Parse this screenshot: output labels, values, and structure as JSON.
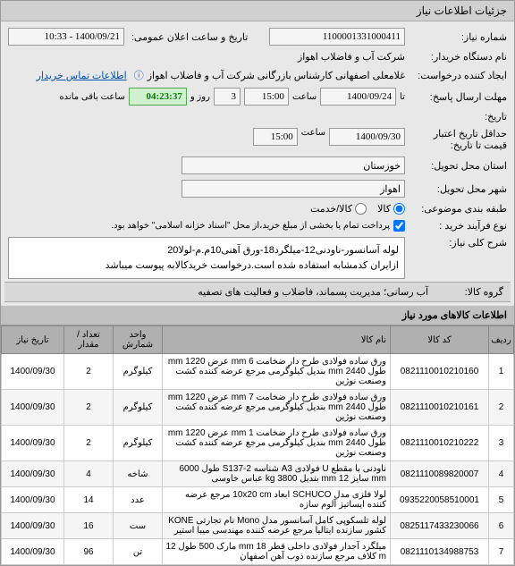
{
  "header": {
    "tab_title": "جزئیات اطلاعات نیاز"
  },
  "fields": {
    "need_no_label": "شماره نیاز:",
    "need_no": "1100001331000411",
    "announce_label": "تاریخ و ساعت اعلان عمومی:",
    "announce_value": "1400/09/21 - 10:33",
    "org_label": "نام دستگاه خریدار:",
    "org_value": "شرکت آب و فاضلاب اهواز",
    "creator_label": "ایجاد کننده درخواست:",
    "creator_value": "غلامعلی اصفهانی کارشناس بازرگانی شرکت آب و فاضلاب اهواز",
    "contact_link": "اطلاعات تماس خریدار",
    "deadline_label": "مهلت ارسال پاسخ:",
    "deadline_word": "تا",
    "deadline_date": "1400/09/24",
    "deadline_hour_label": "ساعت",
    "deadline_hour": "15:00",
    "remain_day": "3",
    "remain_day_label": "روز و",
    "remain_time": "04:23:37",
    "remain_label": "ساعت باقی مانده",
    "history_label": "تاریخ:",
    "validity_label": "حداقل تاریخ اعتبار",
    "validity_sub": "قیمت تا تاریخ:",
    "validity_date": "1400/09/30",
    "validity_hour": "15:00",
    "province_label": "استان محل تحویل:",
    "province": "خوزستان",
    "city_label": "شهر محل تحویل:",
    "city": "اهواز",
    "category_label": "طبقه بندی موضوعی:",
    "cat_item1": "کالا",
    "cat_item2": "کالا/خدمت",
    "process_label": "نوع فرآیند خرید :",
    "process_text": "پرداخت تمام یا بخشی از مبلغ خرید،از محل \"اسناد خزانه اسلامی\" خواهد بود.",
    "desc_title_label": "شرح کلی نیاز:",
    "desc_text": "لوله آسانسور-ناودنی12-میلگرد18-ورق آهنی10م.م-لولا20\nازایران کدمشابه استفاده شده است.درخواست خریدکالابه پیوست میباشد",
    "group_label": "گروه کالا:",
    "group_value": "آب رسانی؛ مدیریت پسماند، فاضلاب و فعالیت های تصفیه"
  },
  "table": {
    "title": "اطلاعات کالاهای مورد نیاز",
    "columns": {
      "idx": "ردیف",
      "code": "کد کالا",
      "name": "نام کالا",
      "unit": "واحد شمارش",
      "qty": "تعداد / مقدار",
      "date": "تاریخ نیاز"
    },
    "rows": [
      {
        "idx": "1",
        "code": "0821110010210160",
        "name": "ورق ساده فولادی طرح دار ضخامت 6 mm عرض 1220 mm طول 2440 mm بندیل کیلوگرمی مرجع عرضه کننده کشت وصنعت نوژین",
        "unit": "کیلوگرم",
        "qty": "2",
        "date": "1400/09/30"
      },
      {
        "idx": "2",
        "code": "0821110010210161",
        "name": "ورق ساده فولادی طرح دار ضخامت 7 mm عرض 1220 mm طول 2440 mm بندیل کیلوگرمی مرجع عرضه کننده کشت وصنعت نوژین",
        "unit": "کیلوگرم",
        "qty": "2",
        "date": "1400/09/30"
      },
      {
        "idx": "3",
        "code": "0821110010210222",
        "name": "ورق ساده فولادی طرح دار ضخامت 1 mm عرض 1220 mm طول 2440 mm بندیل کیلوگرمی مرجع عرضه کننده کشت وصنعت نوژین",
        "unit": "کیلوگرم",
        "qty": "2",
        "date": "1400/09/30"
      },
      {
        "idx": "4",
        "code": "0821110089820007",
        "name": "ناودنی با مقطع U فولادی A3 شناسه S137-2 طول 6000 mm سایز 12 mm بندیل 3800 kg عباس خاوسی",
        "unit": "شاخه",
        "qty": "4",
        "date": "1400/09/30"
      },
      {
        "idx": "5",
        "code": "0935220058510001",
        "name": "لولا فلزی مدل SCHUCO ابعاد 10x20 cm مرجع عرضه کننده ایساتیز آلوم سازه",
        "unit": "عدد",
        "qty": "14",
        "date": "1400/09/30"
      },
      {
        "idx": "6",
        "code": "0825117433230066",
        "name": "لوله تلسکوپی کامل آسانسور مدل Mono نام تجارتی KONE کشور سازنده ایتالیا مرجع عرضه کننده مهندسی میبا استیر",
        "unit": "ست",
        "qty": "16",
        "date": "1400/09/30"
      },
      {
        "idx": "7",
        "code": "0821110134988753",
        "name": "میلگرد آجدار فولادی داخلی قطر 18 mm مارک 500 طول 12 m کلاف مرجع سازنده ذوب آهن  اصفهان",
        "unit": "تن",
        "qty": "96",
        "date": "1400/09/30"
      }
    ]
  }
}
